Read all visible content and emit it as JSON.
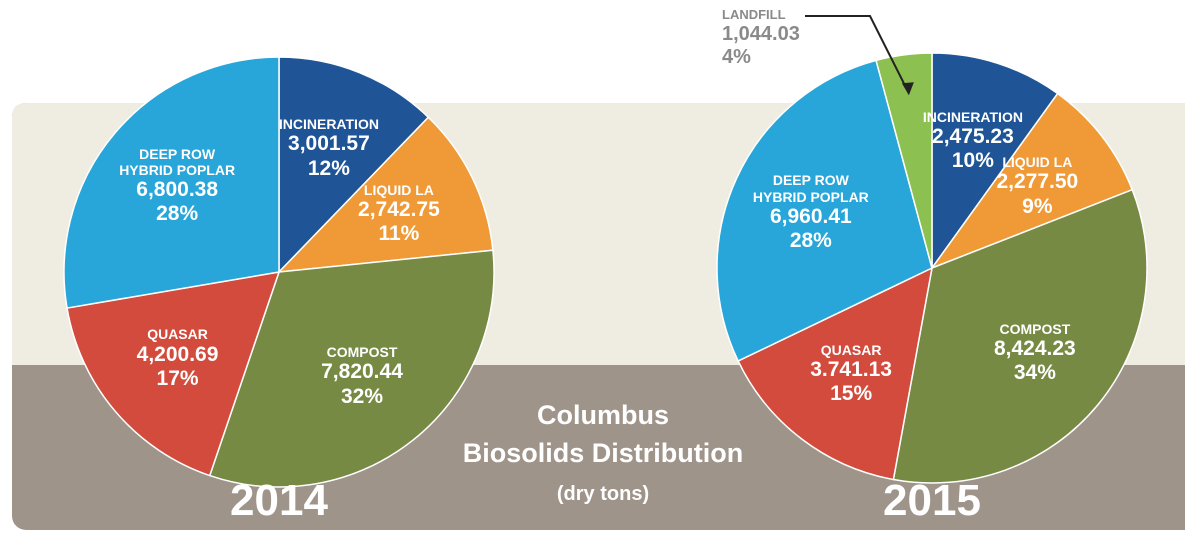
{
  "title": "Columbus",
  "title_line2": "Biosolids Distribution",
  "subtitle": "(dry tons)",
  "chart_data": [
    {
      "type": "pie",
      "title": "2014",
      "categories": [
        "INCINERATION",
        "LIQUID LA",
        "COMPOST",
        "QUASAR",
        "DEEP ROW\nHYBRID POPLAR"
      ],
      "values": [
        3001.57,
        2742.75,
        7820.44,
        4200.69,
        6800.38
      ],
      "value_labels": [
        "3,001.57",
        "2,742.75",
        "7,820.44",
        "4,200.69",
        "6,800.38"
      ],
      "percents": [
        12,
        11,
        32,
        17,
        28
      ],
      "percent_labels": [
        "12%",
        "11%",
        "32%",
        "17%",
        "28%"
      ],
      "colors": [
        "#1f5596",
        "#ef9a36",
        "#778a44",
        "#d24b3c",
        "#29a6d9"
      ]
    },
    {
      "type": "pie",
      "title": "2015",
      "categories": [
        "INCINERATION",
        "LIQUID LA",
        "COMPOST",
        "QUASAR",
        "DEEP ROW\nHYBRID POPLAR",
        "LANDFILL"
      ],
      "values": [
        2475.23,
        2277.5,
        8424.23,
        3741.13,
        6960.41,
        1044.03
      ],
      "value_labels": [
        "2,475.23",
        "2,277.50",
        "8,424.23",
        "3.741.13",
        "6,960.41",
        "1,044.03"
      ],
      "percents": [
        10,
        9,
        34,
        15,
        28,
        4
      ],
      "percent_labels": [
        "10%",
        "9%",
        "34%",
        "15%",
        "28%",
        "4%"
      ],
      "colors": [
        "#1f5596",
        "#ef9a36",
        "#778a44",
        "#d24b3c",
        "#29a6d9",
        "#8cc152"
      ]
    }
  ]
}
